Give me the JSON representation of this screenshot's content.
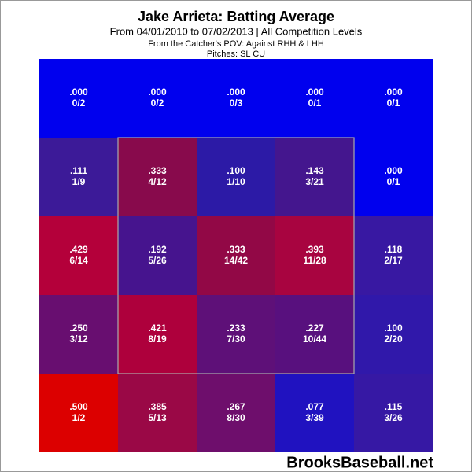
{
  "chart_data": {
    "type": "heatmap",
    "title": "Jake Arrieta: Batting Average",
    "subtitle": "From 04/01/2010 to 07/02/2013 | All Competition Levels",
    "perspective": "From the Catcher's POV:  Against RHH & LHH",
    "pitches": "Pitches:  SL  CU",
    "watermark": "BrooksBaseball.net",
    "values": [
      [
        0,
        0,
        0,
        0,
        0
      ],
      [
        0.111,
        0.333,
        0.1,
        0.143,
        0
      ],
      [
        0.429,
        0.192,
        0.333,
        0.393,
        0.118
      ],
      [
        0.25,
        0.421,
        0.233,
        0.227,
        0.1
      ],
      [
        0.5,
        0.385,
        0.267,
        0.077,
        0.115
      ]
    ],
    "value_labels": [
      [
        ".000",
        ".000",
        ".000",
        ".000",
        ".000"
      ],
      [
        ".111",
        ".333",
        ".100",
        ".143",
        ".000"
      ],
      [
        ".429",
        ".192",
        ".333",
        ".393",
        ".118"
      ],
      [
        ".250",
        ".421",
        ".233",
        ".227",
        ".100"
      ],
      [
        ".500",
        ".385",
        ".267",
        ".077",
        ".115"
      ]
    ],
    "counts": [
      [
        "0/2",
        "0/2",
        "0/3",
        "0/1",
        "0/1"
      ],
      [
        "1/9",
        "4/12",
        "1/10",
        "3/21",
        "0/1"
      ],
      [
        "6/14",
        "5/26",
        "14/42",
        "11/28",
        "2/17"
      ],
      [
        "3/12",
        "8/19",
        "7/30",
        "10/44",
        "2/20"
      ],
      [
        "1/2",
        "5/13",
        "8/30",
        "3/39",
        "3/26"
      ]
    ],
    "colors": [
      [
        "#0000ee",
        "#0000ee",
        "#0000ee",
        "#0000ee",
        "#0000ee"
      ],
      [
        "#3c1a98",
        "#880a4c",
        "#2c1aa6",
        "#44168e",
        "#0000ee"
      ],
      [
        "#b4003a",
        "#46148e",
        "#920846",
        "#a80440",
        "#3818a2"
      ],
      [
        "#680e70",
        "#ae003c",
        "#5e1078",
        "#58107e",
        "#3018aa"
      ],
      [
        "#dc0000",
        "#9a0846",
        "#6e0e6c",
        "#2012c0",
        "#3618a4"
      ]
    ]
  }
}
